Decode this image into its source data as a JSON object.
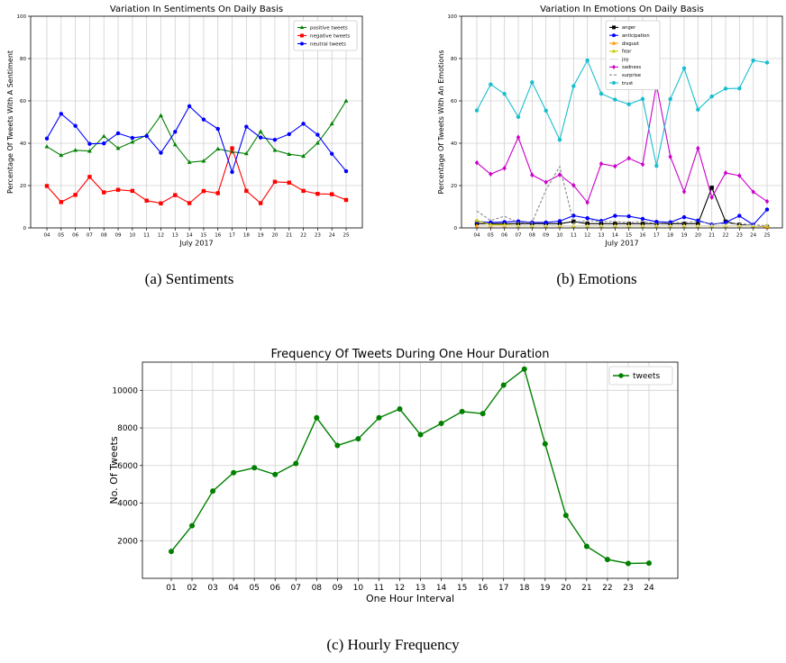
{
  "chart_data": [
    {
      "type": "line",
      "title": "Variation In Sentiments On Daily Basis",
      "xlabel": "July 2017",
      "ylabel": "Percentage Of Tweets With A Sentiment",
      "ylim": [
        0,
        100
      ],
      "yticks": [
        "0",
        "20",
        "40",
        "60",
        "80",
        "100"
      ],
      "grid": true,
      "legend": "top-right",
      "categories": [
        "04",
        "05",
        "06",
        "07",
        "08",
        "09",
        "10",
        "11",
        "12",
        "13",
        "14",
        "15",
        "16",
        "17",
        "18",
        "19",
        "20",
        "21",
        "22",
        "23",
        "24",
        "25"
      ],
      "series": [
        {
          "name": "positive tweets",
          "color": "#008000",
          "marker": "triangle",
          "values": [
            38.4,
            34.3,
            36.7,
            36.3,
            43.3,
            37.6,
            40.6,
            43.8,
            53.1,
            39.3,
            31.0,
            31.6,
            37.3,
            35.9,
            35.1,
            45.5,
            36.7,
            34.8,
            33.9,
            40.1,
            49.2,
            60.0
          ]
        },
        {
          "name": "negative tweets",
          "color": "#ff0000",
          "marker": "square",
          "values": [
            19.8,
            12.2,
            15.6,
            24.1,
            16.8,
            18.0,
            17.5,
            12.9,
            11.6,
            15.5,
            11.7,
            17.4,
            16.4,
            37.6,
            17.5,
            11.7,
            21.8,
            21.4,
            17.5,
            16.1,
            15.9,
            13.2
          ]
        },
        {
          "name": "neutral tweets",
          "color": "#0000ff",
          "marker": "circle",
          "values": [
            42.2,
            53.9,
            48.2,
            39.7,
            39.9,
            44.7,
            42.5,
            43.4,
            35.5,
            45.4,
            57.5,
            51.2,
            46.8,
            26.4,
            47.8,
            42.7,
            41.6,
            44.3,
            49.2,
            44.0,
            35.0,
            26.8
          ]
        }
      ]
    },
    {
      "type": "line",
      "title": "Variation In Emotions On Daily Basis",
      "xlabel": "July 2017",
      "ylabel": "Percentage Of Tweets With An Emotions",
      "ylim": [
        0,
        100
      ],
      "yticks": [
        "0",
        "20",
        "40",
        "60",
        "80",
        "100"
      ],
      "grid": true,
      "legend": "top-left",
      "categories": [
        "04",
        "05",
        "06",
        "07",
        "08",
        "09",
        "10",
        "11",
        "12",
        "13",
        "14",
        "15",
        "16",
        "17",
        "18",
        "19",
        "20",
        "21",
        "22",
        "23",
        "24",
        "25"
      ],
      "series": [
        {
          "name": "anger",
          "color": "#000000",
          "marker": "square",
          "values": [
            2,
            2,
            2,
            2,
            2,
            2,
            2,
            3,
            2,
            2,
            2,
            2,
            2,
            2,
            2,
            2,
            2,
            19,
            3,
            1.5,
            1,
            0.5
          ]
        },
        {
          "name": "anticipation",
          "color": "#0000ff",
          "marker": "circle",
          "values": [
            3,
            2.6,
            2.8,
            3.1,
            2.6,
            2.6,
            3.2,
            5.8,
            4.6,
            3.3,
            5.7,
            5.5,
            4.3,
            2.9,
            2.7,
            5.1,
            3.5,
            1.6,
            2.6,
            5.7,
            1.5,
            8.7
          ]
        },
        {
          "name": "disgust",
          "color": "#ff9900",
          "marker": "triangle",
          "values": [
            1,
            1,
            1,
            1,
            1,
            1,
            1,
            1,
            1,
            1,
            1,
            1,
            1,
            1,
            1,
            1,
            1,
            1,
            1,
            1,
            1,
            0.5
          ]
        },
        {
          "name": "fear",
          "color": "#cccc00",
          "marker": "triangle",
          "values": [
            3.5,
            1.5,
            1.5,
            1,
            1,
            1,
            1,
            1,
            1,
            1,
            1,
            1,
            1,
            1,
            1,
            1,
            1,
            1,
            1,
            1,
            1,
            1
          ]
        },
        {
          "name": "joy",
          "color": "#dddddd",
          "marker": "none",
          "values": [
            1,
            1,
            1,
            1,
            1,
            1,
            1,
            1,
            1,
            1,
            1,
            1,
            1,
            1,
            1,
            1,
            1,
            1,
            1,
            1,
            1,
            1
          ]
        },
        {
          "name": "sadness",
          "color": "#cc00cc",
          "marker": "diamond",
          "values": [
            30.8,
            25.4,
            28.2,
            42.8,
            25.0,
            21.6,
            25.1,
            20.1,
            12.0,
            30.3,
            29.1,
            32.9,
            30.0,
            67.6,
            33.6,
            17.1,
            37.6,
            14.4,
            26.0,
            24.7,
            17.0,
            12.5
          ]
        },
        {
          "name": "surprise",
          "color": "#888888",
          "marker": "none",
          "dashed": true,
          "values": [
            8,
            3.5,
            5.5,
            2.5,
            2.5,
            18,
            29,
            2.5,
            3.5,
            3,
            3,
            2.5,
            3,
            2,
            2.5,
            2.5,
            3,
            2,
            2,
            2,
            1.5,
            1
          ]
        },
        {
          "name": "trust",
          "color": "#17becf",
          "marker": "circle",
          "values": [
            55.5,
            67.8,
            63.3,
            52.4,
            68.8,
            55.4,
            41.6,
            67.0,
            79.1,
            63.4,
            60.6,
            58.4,
            60.9,
            29.3,
            60.9,
            75.4,
            55.9,
            62.1,
            65.8,
            65.9,
            79.1,
            78.1
          ]
        }
      ]
    },
    {
      "type": "line",
      "title": "Frequency Of Tweets During One Hour Duration",
      "xlabel": "One Hour Interval",
      "ylabel": "No. Of Tweets",
      "ylim": [
        0,
        11500
      ],
      "yticks": [
        "2000",
        "4000",
        "6000",
        "8000",
        "10000"
      ],
      "grid": true,
      "legend": "top-right",
      "categories": [
        "01",
        "02",
        "03",
        "04",
        "05",
        "06",
        "07",
        "08",
        "09",
        "10",
        "11",
        "12",
        "13",
        "14",
        "15",
        "16",
        "17",
        "18",
        "19",
        "20",
        "21",
        "22",
        "23",
        "24"
      ],
      "series": [
        {
          "name": "tweets",
          "color": "#008000",
          "marker": "circle",
          "values": [
            1430,
            2800,
            4640,
            5620,
            5880,
            5520,
            6110,
            8540,
            7070,
            7420,
            8540,
            9010,
            7640,
            8240,
            8870,
            8760,
            10280,
            11130,
            7150,
            3350,
            1700,
            1000,
            790,
            810
          ]
        }
      ]
    }
  ],
  "captions": {
    "a": "(a) Sentiments",
    "b": "(b) Emotions",
    "c": "(c) Hourly Frequency"
  }
}
